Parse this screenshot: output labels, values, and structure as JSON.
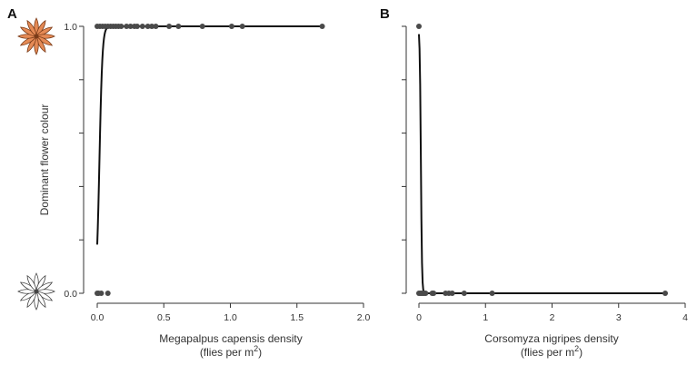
{
  "chart_data": [
    {
      "panel": "A",
      "type": "scatter",
      "title": "",
      "xlabel": "Megapalpus capensis density",
      "xlabel_line2_prefix": "(flies per m",
      "xlabel_sup": "2",
      "xlabel_line2_suffix": ")",
      "ylabel": "Dominant flower colour",
      "xlim": [
        0,
        2.0
      ],
      "ylim": [
        0,
        1
      ],
      "xticks": [
        0.0,
        0.5,
        1.0,
        1.5,
        2.0
      ],
      "xtick_labels": [
        "0.0",
        "0.5",
        "1.0",
        "1.5",
        "2.0"
      ],
      "yticks": [
        0,
        0.2,
        0.4,
        0.6,
        0.8,
        1.0
      ],
      "ytick_labels": [
        "0.0",
        "",
        "",
        "",
        "",
        "1.0"
      ],
      "y_icons": {
        "top": "orange-flower-icon",
        "bottom": "white-flower-icon"
      },
      "points": [
        {
          "x": 0.0,
          "y": 0
        },
        {
          "x": 0.01,
          "y": 0
        },
        {
          "x": 0.03,
          "y": 0
        },
        {
          "x": 0.08,
          "y": 0
        },
        {
          "x": 0.0,
          "y": 1
        },
        {
          "x": 0.02,
          "y": 1
        },
        {
          "x": 0.04,
          "y": 1
        },
        {
          "x": 0.06,
          "y": 1
        },
        {
          "x": 0.08,
          "y": 1
        },
        {
          "x": 0.1,
          "y": 1
        },
        {
          "x": 0.12,
          "y": 1
        },
        {
          "x": 0.14,
          "y": 1
        },
        {
          "x": 0.16,
          "y": 1
        },
        {
          "x": 0.18,
          "y": 1
        },
        {
          "x": 0.22,
          "y": 1
        },
        {
          "x": 0.25,
          "y": 1
        },
        {
          "x": 0.28,
          "y": 1
        },
        {
          "x": 0.3,
          "y": 1
        },
        {
          "x": 0.34,
          "y": 1
        },
        {
          "x": 0.38,
          "y": 1
        },
        {
          "x": 0.41,
          "y": 1
        },
        {
          "x": 0.44,
          "y": 1
        },
        {
          "x": 0.54,
          "y": 1
        },
        {
          "x": 0.61,
          "y": 1
        },
        {
          "x": 0.79,
          "y": 1
        },
        {
          "x": 1.01,
          "y": 1
        },
        {
          "x": 1.09,
          "y": 1
        },
        {
          "x": 1.69,
          "y": 1
        }
      ],
      "fit": {
        "type": "logistic",
        "intercept": -1.5,
        "slope": 90,
        "x_start": 0.0,
        "x_end": 1.69
      }
    },
    {
      "panel": "B",
      "type": "scatter",
      "title": "",
      "xlabel": "Corsomyza nigripes density",
      "xlabel_line2_prefix": "(flies per m",
      "xlabel_sup": "2",
      "xlabel_line2_suffix": ")",
      "ylabel": "",
      "xlim": [
        0,
        4
      ],
      "ylim": [
        0,
        1
      ],
      "xticks": [
        0,
        1,
        2,
        3,
        4
      ],
      "xtick_labels": [
        "0",
        "1",
        "2",
        "3",
        "4"
      ],
      "yticks": [
        0,
        0.2,
        0.4,
        0.6,
        0.8,
        1.0
      ],
      "ytick_labels": [
        "",
        "",
        "",
        "",
        "",
        ""
      ],
      "points": [
        {
          "x": 0.0,
          "y": 1
        },
        {
          "x": 0.0,
          "y": 0
        },
        {
          "x": 0.02,
          "y": 0
        },
        {
          "x": 0.04,
          "y": 0
        },
        {
          "x": 0.06,
          "y": 0
        },
        {
          "x": 0.08,
          "y": 0
        },
        {
          "x": 0.1,
          "y": 0
        },
        {
          "x": 0.2,
          "y": 0
        },
        {
          "x": 0.22,
          "y": 0
        },
        {
          "x": 0.4,
          "y": 0
        },
        {
          "x": 0.45,
          "y": 0
        },
        {
          "x": 0.5,
          "y": 0
        },
        {
          "x": 0.68,
          "y": 0
        },
        {
          "x": 1.1,
          "y": 0
        },
        {
          "x": 3.7,
          "y": 0
        }
      ],
      "fit": {
        "type": "logistic",
        "intercept": 3.5,
        "slope": -120,
        "x_start": 0.0,
        "x_end": 3.7
      }
    }
  ]
}
